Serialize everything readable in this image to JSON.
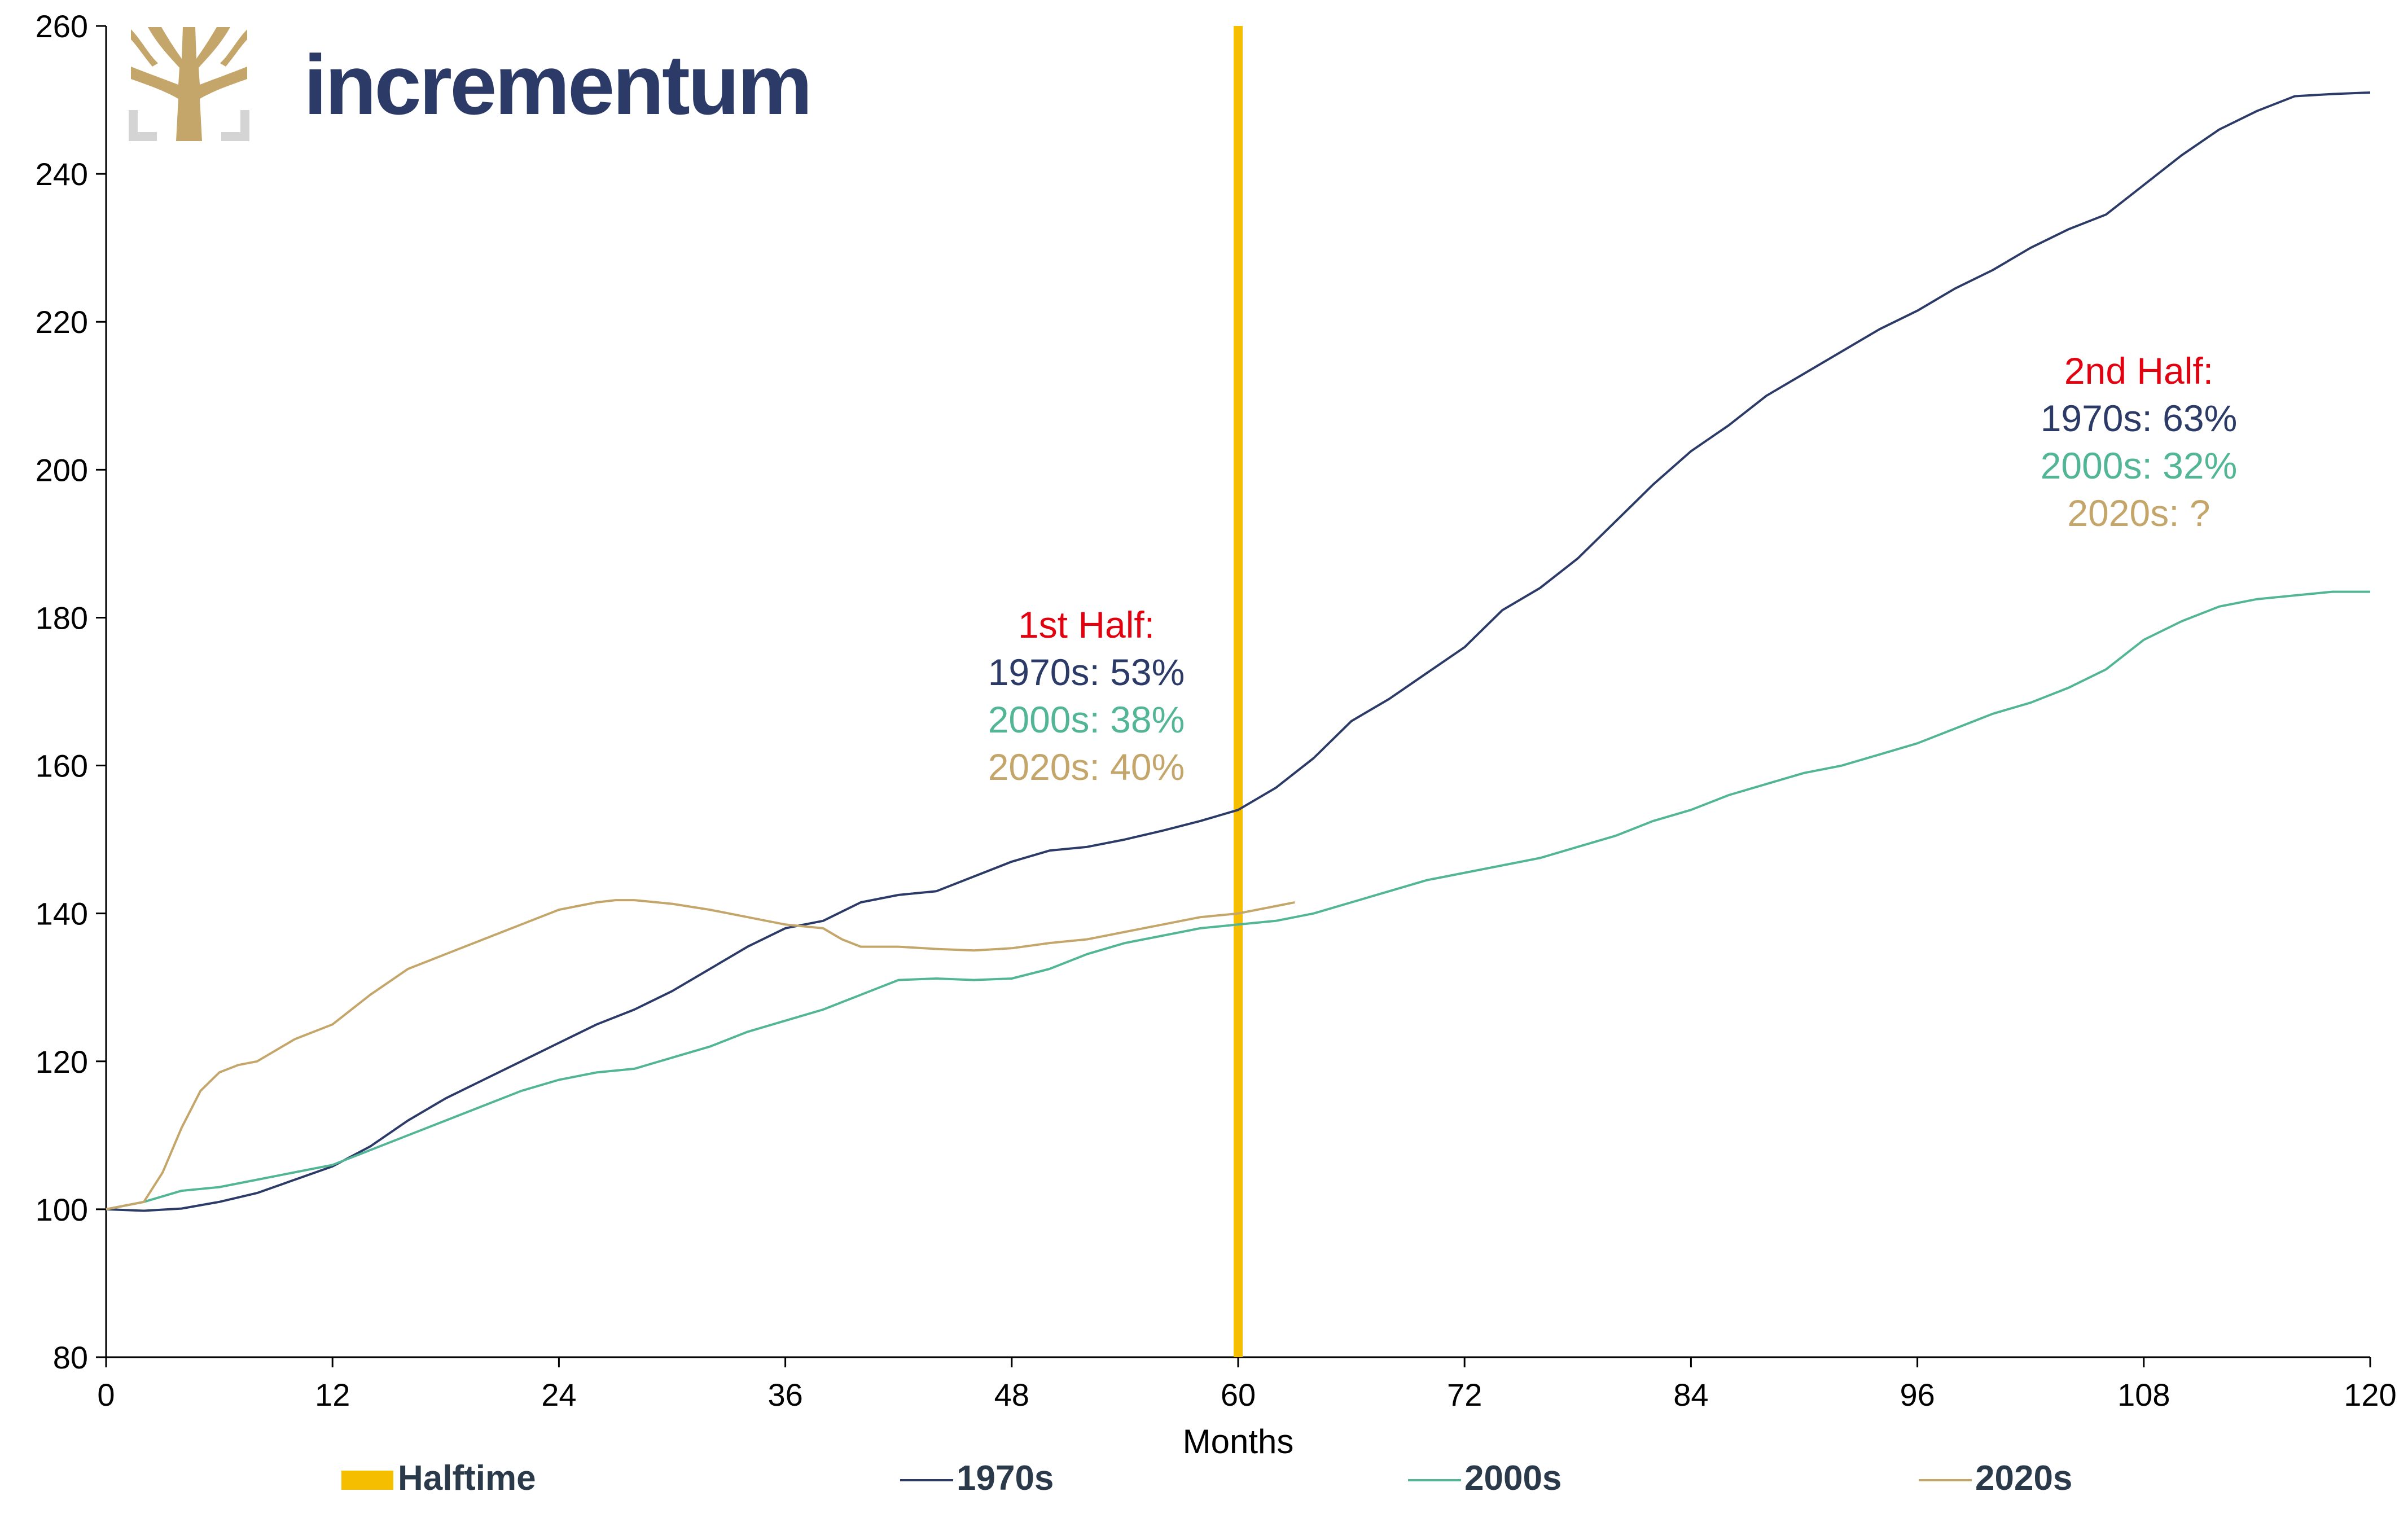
{
  "logo": {
    "text": "incrementum"
  },
  "colors": {
    "halftime": "#f5bf00",
    "s1970": "#2b3a67",
    "s2000": "#52b596",
    "s2020": "#c4a66a",
    "annotation_red": "#e3000f"
  },
  "chart_data": {
    "type": "line",
    "xlabel": "Months",
    "ylabel": "",
    "xlim": [
      0,
      120
    ],
    "ylim": [
      80,
      260
    ],
    "x_ticks": [
      0,
      12,
      24,
      36,
      48,
      60,
      72,
      84,
      96,
      108,
      120
    ],
    "y_ticks": [
      80,
      100,
      120,
      140,
      160,
      180,
      200,
      220,
      240,
      260
    ],
    "halftime": {
      "name": "Halftime",
      "x": 60
    },
    "series": [
      {
        "name": "1970s",
        "x": [
          0,
          2,
          4,
          6,
          8,
          10,
          12,
          14,
          16,
          18,
          20,
          22,
          24,
          26,
          28,
          30,
          32,
          34,
          36,
          38,
          40,
          42,
          44,
          46,
          48,
          50,
          52,
          54,
          56,
          58,
          60,
          62,
          64,
          66,
          68,
          70,
          72,
          74,
          76,
          78,
          80,
          82,
          84,
          86,
          88,
          90,
          92,
          94,
          96,
          98,
          100,
          102,
          104,
          106,
          108,
          110,
          112,
          114,
          116,
          118,
          120
        ],
        "values": [
          100,
          99.8,
          100.1,
          101,
          102.2,
          104,
          105.8,
          108.5,
          112,
          115,
          117.5,
          120,
          122.5,
          125,
          127,
          129.5,
          132.5,
          135.5,
          138,
          139,
          141.5,
          142.5,
          143,
          145,
          147,
          148.5,
          149,
          150,
          151.2,
          152.5,
          154,
          157,
          161,
          166,
          169,
          172.5,
          176,
          181,
          184,
          188,
          193,
          198,
          202.5,
          206,
          210,
          213,
          216,
          219,
          221.5,
          224.5,
          227,
          230,
          232.5,
          234.5,
          238.5,
          242.5,
          246,
          248.5,
          250.5,
          250.8,
          251
        ]
      },
      {
        "name": "2000s",
        "x": [
          0,
          2,
          4,
          6,
          8,
          10,
          12,
          14,
          16,
          18,
          20,
          22,
          24,
          26,
          28,
          30,
          32,
          34,
          36,
          38,
          40,
          42,
          44,
          46,
          48,
          50,
          52,
          54,
          56,
          58,
          60,
          62,
          64,
          66,
          68,
          70,
          72,
          74,
          76,
          78,
          80,
          82,
          84,
          86,
          88,
          90,
          92,
          94,
          96,
          98,
          100,
          102,
          104,
          106,
          108,
          110,
          112,
          114,
          116,
          118,
          120
        ],
        "values": [
          100,
          101,
          102.5,
          103,
          104,
          105,
          106,
          108,
          110,
          112,
          114,
          116,
          117.5,
          118.5,
          119,
          120.5,
          122,
          124,
          125.5,
          127,
          129,
          131,
          131.2,
          131,
          131.2,
          132.5,
          134.5,
          136,
          137,
          138,
          138.5,
          139,
          140,
          141.5,
          143,
          144.5,
          145.5,
          146.5,
          147.5,
          149,
          150.5,
          152.5,
          154,
          156,
          157.5,
          159,
          160,
          161.5,
          163,
          165,
          167,
          168.5,
          170.5,
          173,
          177,
          179.5,
          181.5,
          182.5,
          183,
          183.5,
          183.5
        ]
      },
      {
        "name": "2020s",
        "x": [
          0,
          2,
          3,
          4,
          5,
          6,
          7,
          8,
          10,
          12,
          14,
          16,
          17,
          18,
          20,
          22,
          24,
          26,
          27,
          28,
          30,
          32,
          34,
          36,
          38,
          39,
          40,
          42,
          44,
          46,
          48,
          50,
          52,
          54,
          56,
          58,
          60,
          62,
          63
        ],
        "values": [
          100,
          101,
          105,
          111,
          116,
          118.5,
          119.5,
          120,
          123,
          125,
          129,
          132.5,
          133.5,
          134.5,
          136.5,
          138.5,
          140.5,
          141.5,
          141.8,
          141.8,
          141.3,
          140.5,
          139.5,
          138.5,
          138,
          136.5,
          135.5,
          135.5,
          135.2,
          135,
          135.3,
          136,
          136.5,
          137.5,
          138.5,
          139.5,
          140,
          141,
          141.5
        ]
      }
    ],
    "annotations": [
      {
        "lines": [
          {
            "text": "1st Half:",
            "color": "annotation_red"
          },
          {
            "text": "1970s: 53%",
            "color": "s1970"
          },
          {
            "text": "2000s: 38%",
            "color": "s2000"
          },
          {
            "text": "2020s: 40%",
            "color": "s2020"
          }
        ]
      },
      {
        "lines": [
          {
            "text": "2nd Half:",
            "color": "annotation_red"
          },
          {
            "text": "1970s: 63%",
            "color": "s1970"
          },
          {
            "text": "2000s: 32%",
            "color": "s2000"
          },
          {
            "text": "2020s: ?",
            "color": "s2020"
          }
        ]
      }
    ],
    "legend": {
      "placement": "bottom",
      "items": [
        {
          "name": "Halftime",
          "style": "bar",
          "color": "halftime"
        },
        {
          "name": "1970s",
          "style": "line",
          "color": "s1970"
        },
        {
          "name": "2000s",
          "style": "line",
          "color": "s2000"
        },
        {
          "name": "2020s",
          "style": "line",
          "color": "s2020"
        }
      ]
    }
  }
}
